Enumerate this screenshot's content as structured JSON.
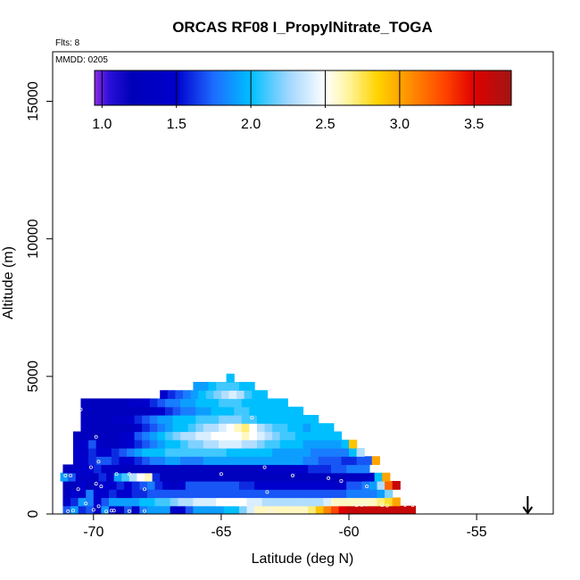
{
  "chart_data": {
    "type": "heatmap",
    "title": "ORCAS RF08 I_PropylNitrate_TOGA",
    "flights_label": "Flts: 8",
    "date_label": "MMDD: 0205",
    "xlabel": "Latitude (deg N)",
    "ylabel": "Altitude (m)",
    "xlim": [
      -71.6,
      -52.0
    ],
    "ylim": [
      0,
      16800
    ],
    "xticks": [
      -70,
      -65,
      -60,
      -55
    ],
    "xtick_labels": [
      "-70",
      "-65",
      "-60",
      "-55"
    ],
    "yticks": [
      0,
      5000,
      10000,
      15000
    ],
    "ytick_labels": [
      "0",
      "5000",
      "10000",
      "15000"
    ],
    "colorbar": {
      "range": [
        0.95,
        3.75
      ],
      "ticks": [
        1.0,
        1.5,
        2.0,
        2.5,
        3.0,
        3.5
      ],
      "tick_labels": [
        "1.0",
        "1.5",
        "2.0",
        "2.5",
        "3.0",
        "3.5"
      ],
      "stops": [
        {
          "v": 0.95,
          "c": "#8a2be2"
        },
        {
          "v": 1.05,
          "c": "#2a0fd8"
        },
        {
          "v": 1.2,
          "c": "#0000b8"
        },
        {
          "v": 1.5,
          "c": "#0000cd"
        },
        {
          "v": 1.75,
          "c": "#1e6cff"
        },
        {
          "v": 2.0,
          "c": "#00bfff"
        },
        {
          "v": 2.25,
          "c": "#9fd6ff"
        },
        {
          "v": 2.5,
          "c": "#ffffff"
        },
        {
          "v": 2.65,
          "c": "#fff5a0"
        },
        {
          "v": 2.85,
          "c": "#ffd400"
        },
        {
          "v": 3.0,
          "c": "#ffa500"
        },
        {
          "v": 3.3,
          "c": "#ff4500"
        },
        {
          "v": 3.5,
          "c": "#e00000"
        },
        {
          "v": 3.75,
          "c": "#a01515"
        }
      ]
    },
    "cell_size": {
      "dlat": 0.3,
      "dalt": 300
    },
    "rows": [
      {
        "alt": 0,
        "lat0": -71.2,
        "lat1": -57.6,
        "vals": [
          1.7,
          1.9,
          1.6,
          1.7,
          1.4,
          1.9,
          1.5,
          1.3,
          1.7,
          1.4,
          1.8,
          1.9,
          1.9,
          1.9,
          1.4,
          1.5,
          1.7,
          1.9,
          1.9,
          1.9,
          1.9,
          2.0,
          2.0,
          2.2,
          2.4,
          2.6,
          2.6,
          2.6,
          2.6,
          2.6,
          2.6,
          2.6,
          2.7,
          2.9,
          3.1,
          3.3,
          3.5,
          3.6,
          3.6,
          3.6,
          3.6,
          3.6,
          3.6,
          3.6,
          3.6,
          3.6
        ]
      },
      {
        "alt": 300,
        "lat0": -71.2,
        "lat1": -58.2,
        "vals": [
          1.4,
          1.6,
          1.9,
          1.8,
          1.5,
          1.7,
          1.9,
          1.9,
          1.9,
          1.9,
          2.0,
          2.0,
          2.1,
          2.1,
          2.2,
          2.3,
          2.3,
          2.4,
          2.4,
          2.4,
          2.5,
          2.5,
          2.5,
          2.5,
          2.4,
          2.4,
          2.3,
          2.3,
          2.3,
          2.3,
          2.3,
          2.3,
          2.3,
          2.3,
          2.4,
          2.6,
          2.6,
          2.6,
          2.6,
          2.6,
          2.6,
          2.7,
          2.8,
          3.0
        ]
      },
      {
        "alt": 600,
        "lat0": -71.2,
        "lat1": -58.5,
        "vals": [
          1.3,
          1.5,
          1.4,
          1.8,
          1.5,
          1.5,
          1.6,
          1.5,
          1.5,
          1.6,
          1.6,
          1.7,
          1.7,
          1.7,
          1.7,
          1.7,
          1.7,
          1.7,
          1.7,
          1.7,
          1.7,
          1.7,
          1.7,
          1.7,
          1.7,
          1.7,
          1.7,
          1.7,
          1.7,
          1.7,
          1.7,
          1.7,
          1.7,
          1.7,
          1.7,
          1.7,
          1.7,
          1.8,
          1.8,
          1.8,
          1.8,
          1.9,
          2.2
        ]
      },
      {
        "alt": 900,
        "lat0": -71.2,
        "lat1": -58.2,
        "vals": [
          1.2,
          1.3,
          1.5,
          1.3,
          1.4,
          1.5,
          1.5,
          1.6,
          1.5,
          1.6,
          1.7,
          1.8,
          1.6,
          1.5,
          1.3,
          1.5,
          1.7,
          1.7,
          1.7,
          1.7,
          1.7,
          1.7,
          1.7,
          1.6,
          1.6,
          1.5,
          1.5,
          1.5,
          1.5,
          1.5,
          1.5,
          1.5,
          1.5,
          1.5,
          1.5,
          1.4,
          1.5,
          1.7,
          1.7,
          1.8,
          1.9,
          2.3,
          3.2,
          3.6
        ]
      },
      {
        "alt": 1200,
        "lat0": -71.3,
        "lat1": -58.5,
        "vals": [
          1.9,
          1.7,
          1.4,
          1.4,
          1.3,
          1.6,
          1.4,
          1.9,
          2.1,
          2.3,
          2.5,
          2.6,
          1.6,
          1.3,
          1.3,
          1.3,
          1.3,
          1.3,
          1.3,
          1.3,
          1.3,
          1.3,
          1.3,
          1.3,
          1.3,
          1.3,
          1.3,
          1.3,
          1.3,
          1.3,
          1.3,
          1.3,
          1.3,
          1.3,
          1.3,
          1.3,
          1.3,
          1.3,
          1.3,
          1.3,
          1.4,
          2.0,
          3.0
        ]
      },
      {
        "alt": 1500,
        "lat0": -71.2,
        "lat1": -59.2,
        "vals": [
          1.3,
          1.4,
          1.5,
          1.5,
          1.6,
          1.4,
          1.4,
          1.3,
          1.3,
          1.3,
          1.3,
          1.3,
          1.3,
          1.3,
          1.3,
          1.3,
          1.3,
          1.3,
          1.3,
          1.3,
          1.3,
          1.3,
          1.3,
          1.3,
          1.3,
          1.3,
          1.4,
          1.4,
          1.4,
          1.4,
          1.5,
          1.5,
          1.6,
          1.6,
          1.6,
          1.7,
          1.7,
          1.8,
          1.8,
          1.8
        ]
      },
      {
        "alt": 1800,
        "lat0": -70.8,
        "lat1": -59.2,
        "vals": [
          1.4,
          1.5,
          1.6,
          1.7,
          1.7,
          1.6,
          1.5,
          1.5,
          1.6,
          1.7,
          1.8,
          1.8,
          1.9,
          1.9,
          1.8,
          1.8,
          1.8,
          1.9,
          1.9,
          1.9,
          1.9,
          1.9,
          1.9,
          1.9,
          1.9,
          1.9,
          1.9,
          1.9,
          1.9,
          1.9,
          1.8,
          1.8,
          1.7,
          1.7,
          1.7,
          1.6,
          1.6,
          1.7,
          1.7,
          3.0
        ]
      },
      {
        "alt": 2100,
        "lat0": -70.8,
        "lat1": -59.5,
        "vals": [
          1.5,
          1.4,
          1.6,
          1.5,
          1.5,
          1.6,
          1.7,
          1.8,
          1.9,
          2.0,
          2.0,
          2.0,
          2.1,
          2.1,
          2.1,
          2.1,
          2.1,
          2.1,
          2.1,
          2.1,
          2.0,
          2.0,
          2.0,
          2.0,
          2.0,
          2.0,
          1.9,
          1.9,
          1.9,
          1.9,
          1.9,
          1.8,
          1.8,
          1.8,
          1.8,
          1.8,
          2.0,
          2.3
        ]
      },
      {
        "alt": 2400,
        "lat0": -70.8,
        "lat1": -59.8,
        "vals": [
          1.4,
          1.5,
          1.7,
          1.4,
          1.3,
          1.3,
          1.4,
          1.5,
          1.6,
          1.7,
          1.8,
          1.9,
          2.0,
          2.0,
          2.1,
          2.2,
          2.2,
          2.3,
          2.3,
          2.4,
          2.4,
          2.4,
          2.3,
          2.3,
          2.2,
          2.1,
          2.1,
          2.0,
          2.0,
          2.0,
          1.9,
          1.9,
          1.9,
          1.9,
          1.9,
          2.0,
          2.9
        ]
      },
      {
        "alt": 2700,
        "lat0": -70.8,
        "lat1": -60.4,
        "vals": [
          1.3,
          1.3,
          1.3,
          1.3,
          1.3,
          1.3,
          1.4,
          1.5,
          1.7,
          1.8,
          1.9,
          2.0,
          2.1,
          2.2,
          2.3,
          2.3,
          2.4,
          2.4,
          2.5,
          2.5,
          2.5,
          2.5,
          2.6,
          2.5,
          2.4,
          2.3,
          2.2,
          2.1,
          2.1,
          2.0,
          2.0,
          2.0,
          2.0,
          2.0,
          2.0
        ]
      },
      {
        "alt": 3000,
        "lat0": -70.5,
        "lat1": -60.7,
        "vals": [
          1.3,
          1.3,
          1.3,
          1.3,
          1.3,
          1.3,
          1.3,
          1.4,
          1.6,
          1.7,
          1.8,
          1.9,
          2.0,
          2.0,
          2.1,
          2.2,
          2.3,
          2.3,
          2.4,
          2.5,
          2.6,
          2.7,
          2.5,
          2.3,
          2.2,
          2.1,
          2.1,
          2.0,
          2.0,
          1.9,
          2.0,
          2.0,
          2.0
        ]
      },
      {
        "alt": 3300,
        "lat0": -70.5,
        "lat1": -61.3,
        "vals": [
          1.3,
          1.3,
          1.3,
          1.3,
          1.4,
          1.4,
          1.5,
          1.6,
          1.7,
          1.8,
          1.9,
          1.9,
          2.0,
          2.0,
          2.0,
          2.1,
          2.1,
          2.1,
          2.2,
          2.2,
          2.2,
          2.1,
          2.1,
          2.0,
          2.0,
          2.0,
          2.0,
          2.0,
          2.0,
          2.0,
          2.0
        ]
      },
      {
        "alt": 3600,
        "lat0": -70.5,
        "lat1": -61.9,
        "vals": [
          1.3,
          1.3,
          1.3,
          1.3,
          1.3,
          1.3,
          1.3,
          1.3,
          1.3,
          1.4,
          1.5,
          1.6,
          1.7,
          1.8,
          1.8,
          1.9,
          1.9,
          2.0,
          2.0,
          2.0,
          2.1,
          2.1,
          2.0,
          2.0,
          2.0,
          2.0,
          2.0,
          2.0,
          2.0
        ]
      },
      {
        "alt": 3900,
        "lat0": -70.5,
        "lat1": -62.5,
        "vals": [
          1.3,
          1.3,
          1.3,
          1.3,
          1.3,
          1.3,
          1.4,
          1.4,
          1.5,
          1.6,
          1.7,
          1.8,
          1.8,
          1.9,
          1.9,
          2.0,
          2.0,
          2.0,
          2.1,
          2.1,
          2.1,
          2.0,
          2.0,
          2.0,
          2.0,
          2.0,
          2.0
        ]
      },
      {
        "alt": 4200,
        "lat0": -67.4,
        "lat1": -63.2,
        "vals": [
          1.5,
          1.6,
          1.7,
          1.8,
          1.9,
          2.0,
          2.1,
          2.2,
          2.3,
          2.4,
          2.3,
          2.1,
          2.0,
          2.0
        ]
      },
      {
        "alt": 4500,
        "lat0": -66.1,
        "lat1": -63.7,
        "vals": [
          1.9,
          1.9,
          2.0,
          2.1,
          2.1,
          2.1,
          2.0,
          2.0
        ]
      },
      {
        "alt": 4800,
        "lat0": -64.8,
        "lat1": -64.5,
        "vals": [
          2.0
        ]
      }
    ],
    "sample_points": [
      [
        -71.0,
        100
      ],
      [
        -70.8,
        120
      ],
      [
        -69.5,
        90
      ],
      [
        -69.2,
        120
      ],
      [
        -68.6,
        100
      ],
      [
        -68.0,
        110
      ],
      [
        -70.0,
        150
      ],
      [
        -70.3,
        380
      ],
      [
        -70.6,
        900
      ],
      [
        -69.9,
        1100
      ],
      [
        -69.7,
        1000
      ],
      [
        -70.9,
        1400
      ],
      [
        -68.6,
        1450
      ],
      [
        -69.1,
        1450
      ],
      [
        -70.1,
        1700
      ],
      [
        -71.1,
        1400
      ],
      [
        -69.9,
        2800
      ],
      [
        -69.8,
        1900
      ],
      [
        -70.5,
        3800
      ],
      [
        -65.0,
        1450
      ],
      [
        -63.8,
        3500
      ],
      [
        -63.3,
        1700
      ],
      [
        -62.2,
        1400
      ],
      [
        -60.8,
        1300
      ],
      [
        -60.3,
        1200
      ],
      [
        -59.3,
        1000
      ],
      [
        -68.0,
        900
      ],
      [
        -63.2,
        800
      ],
      [
        -60.5,
        350
      ],
      [
        -59.7,
        320
      ],
      [
        -59.5,
        330
      ],
      [
        -59.3,
        340
      ],
      [
        -58.7,
        320
      ],
      [
        -58.5,
        310
      ],
      [
        -57.8,
        330
      ],
      [
        -57.5,
        320
      ],
      [
        -63.1,
        120
      ],
      [
        -63.0,
        80
      ],
      [
        -69.8,
        280
      ],
      [
        -69.3,
        120
      ]
    ],
    "arrow_marker": {
      "lat": -53.0,
      "direction": "down"
    }
  }
}
